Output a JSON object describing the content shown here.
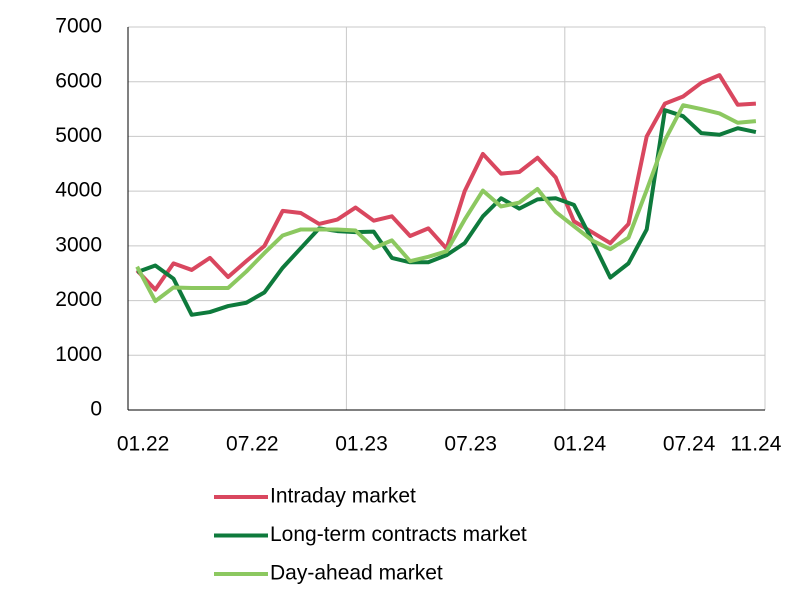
{
  "chart_data": {
    "type": "line",
    "categories": [
      "01.22",
      null,
      null,
      null,
      null,
      null,
      "07.22",
      null,
      null,
      null,
      null,
      null,
      "01.23",
      null,
      null,
      null,
      null,
      null,
      "07.23",
      null,
      null,
      null,
      null,
      null,
      "01.24",
      null,
      null,
      null,
      null,
      null,
      "07.24",
      null,
      null,
      null,
      "11.24"
    ],
    "series": [
      {
        "name": "Intraday market",
        "color": "#d9475f",
        "values": [
          2550,
          2200,
          2680,
          2560,
          2780,
          2430,
          2720,
          3000,
          3640,
          3600,
          3400,
          3480,
          3700,
          3460,
          3540,
          3180,
          3320,
          2950,
          4000,
          4680,
          4320,
          4350,
          4610,
          4250,
          3450,
          3250,
          3050,
          3400,
          5000,
          5600,
          5730,
          5980,
          6120,
          5580,
          5600
        ]
      },
      {
        "name": "Long-term contracts market",
        "color": "#0e7a3c",
        "values": [
          2520,
          2640,
          2400,
          1740,
          1790,
          1900,
          1960,
          2150,
          2600,
          2960,
          3320,
          3270,
          3250,
          3260,
          2780,
          2700,
          2700,
          2830,
          3050,
          3540,
          3870,
          3680,
          3850,
          3870,
          3750,
          3100,
          2420,
          2680,
          3300,
          5480,
          5370,
          5060,
          5030,
          5150,
          5080
        ]
      },
      {
        "name": "Day-ahead market",
        "color": "#8cc860",
        "values": [
          2620,
          1990,
          2240,
          2230,
          2230,
          2230,
          2530,
          2870,
          3190,
          3300,
          3300,
          3300,
          3280,
          2960,
          3100,
          2720,
          2800,
          2900,
          3480,
          4010,
          3720,
          3790,
          4040,
          3620,
          3360,
          3100,
          2940,
          3150,
          4020,
          4930,
          5570,
          5500,
          5420,
          5250,
          5280
        ]
      }
    ],
    "ylim": [
      0,
      7000
    ],
    "yticks": [
      0,
      1000,
      2000,
      3000,
      4000,
      5000,
      6000,
      7000
    ],
    "grid": true
  }
}
